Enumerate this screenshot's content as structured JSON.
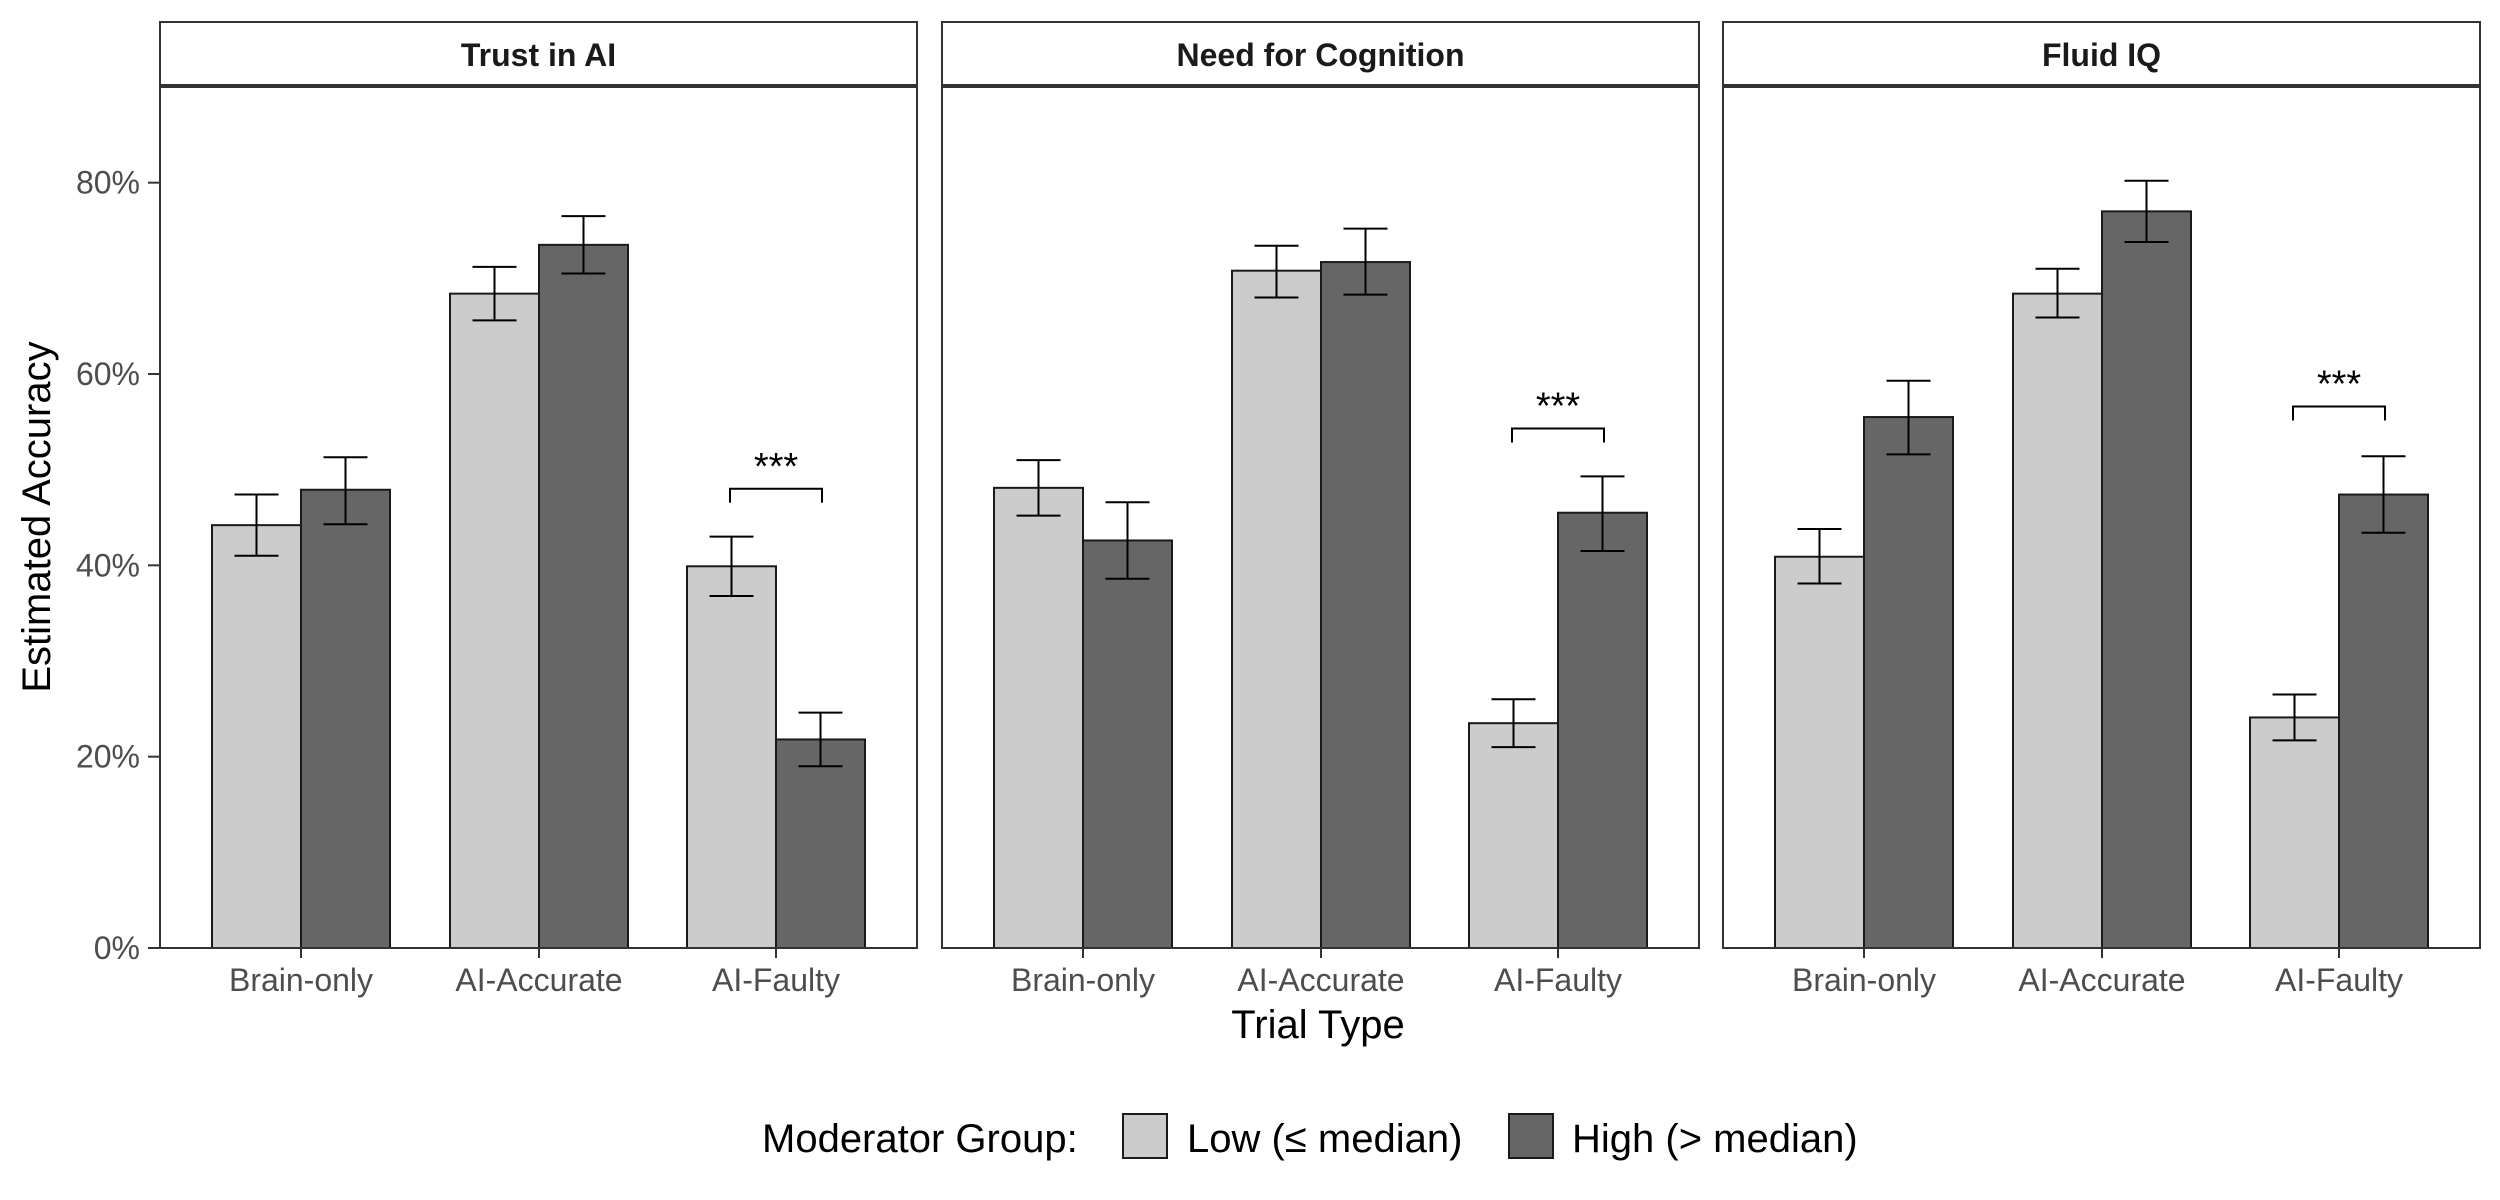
{
  "chart_data": {
    "type": "bar",
    "xlabel": "Trial Type",
    "ylabel": "Estimated Accuracy",
    "ylim": [
      0,
      0.9
    ],
    "yticks": [
      0,
      0.2,
      0.4,
      0.6,
      0.8
    ],
    "ytick_labels": [
      "0%",
      "20%",
      "40%",
      "60%",
      "80%"
    ],
    "categories": [
      "Brain-only",
      "AI-Accurate",
      "AI-Faulty"
    ],
    "legend": {
      "title": "Moderator Group:",
      "position": "bottom",
      "entries": [
        {
          "label": "Low (≤ median)",
          "color": "#cccccc"
        },
        {
          "label": "High (> median)",
          "color": "#666666"
        }
      ]
    },
    "panels": [
      {
        "title": "Trust in AI",
        "series": [
          {
            "group": "low",
            "values": [
              0.442,
              0.684,
              0.399
            ],
            "error_low": [
              0.41,
              0.656,
              0.368
            ],
            "error_high": [
              0.474,
              0.712,
              0.43
            ]
          },
          {
            "group": "high",
            "values": [
              0.479,
              0.735,
              0.218
            ],
            "error_low": [
              0.443,
              0.705,
              0.19
            ],
            "error_high": [
              0.513,
              0.765,
              0.246
            ]
          }
        ],
        "significance": [
          {
            "category": "AI-Faulty",
            "label": "***",
            "y": 0.48
          }
        ]
      },
      {
        "title": "Need for Cognition",
        "series": [
          {
            "group": "low",
            "values": [
              0.481,
              0.708,
              0.235
            ],
            "error_low": [
              0.452,
              0.68,
              0.21
            ],
            "error_high": [
              0.51,
              0.734,
              0.26
            ]
          },
          {
            "group": "high",
            "values": [
              0.426,
              0.717,
              0.455
            ],
            "error_low": [
              0.386,
              0.683,
              0.415
            ],
            "error_high": [
              0.466,
              0.752,
              0.493
            ]
          }
        ],
        "significance": [
          {
            "category": "AI-Faulty",
            "label": "***",
            "y": 0.543
          }
        ]
      },
      {
        "title": "Fluid IQ",
        "series": [
          {
            "group": "low",
            "values": [
              0.409,
              0.684,
              0.241
            ],
            "error_low": [
              0.381,
              0.659,
              0.217
            ],
            "error_high": [
              0.438,
              0.71,
              0.265
            ]
          },
          {
            "group": "high",
            "values": [
              0.555,
              0.77,
              0.474
            ],
            "error_low": [
              0.516,
              0.738,
              0.434
            ],
            "error_high": [
              0.593,
              0.802,
              0.514
            ]
          }
        ],
        "significance": [
          {
            "category": "AI-Faulty",
            "label": "***",
            "y": 0.566
          }
        ]
      }
    ]
  }
}
